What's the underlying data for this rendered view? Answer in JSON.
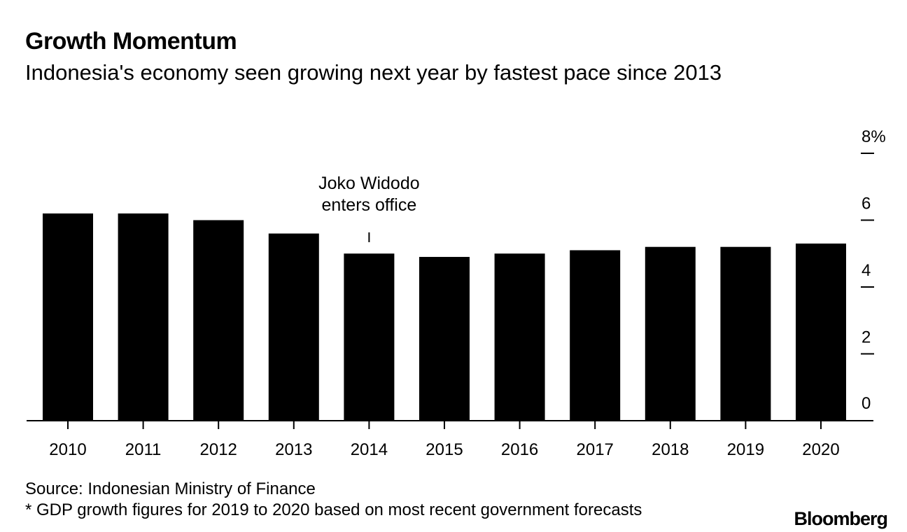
{
  "chart_data": {
    "type": "bar",
    "title": "Growth Momentum",
    "subtitle": "Indonesia's economy seen growing next year by fastest pace since 2013",
    "categories": [
      "2010",
      "2011",
      "2012",
      "2013",
      "2014",
      "2015",
      "2016",
      "2017",
      "2018",
      "2019",
      "2020"
    ],
    "values": [
      6.2,
      6.2,
      6.0,
      5.6,
      5.0,
      4.9,
      5.0,
      5.1,
      5.2,
      5.2,
      5.3
    ],
    "ylim": [
      0,
      8
    ],
    "yticks": [
      0,
      2,
      4,
      6,
      8
    ],
    "ytick_labels": [
      "0",
      "2",
      "4",
      "6",
      "8%"
    ],
    "y_axis_position": "right",
    "annotation": {
      "category": "2014",
      "lines": [
        "Joko Widodo",
        "enters office"
      ]
    },
    "bar_color": "#000000"
  },
  "footer": {
    "source": "Source: Indonesian Ministry of Finance",
    "note": "* GDP growth figures for 2019 to 2020 based on most recent government forecasts"
  },
  "brand": "Bloomberg"
}
